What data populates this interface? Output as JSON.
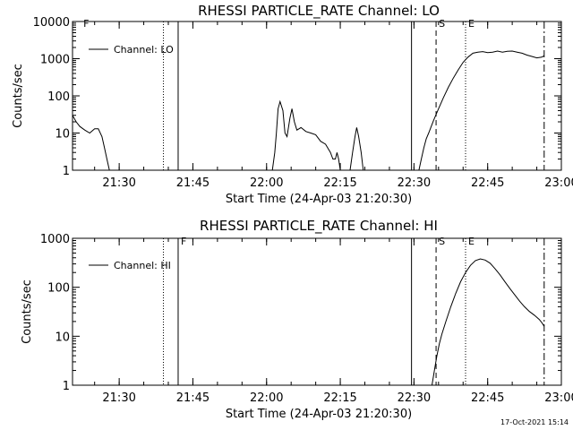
{
  "footer": {
    "timestamp": "17-Oct-2021 15:14"
  },
  "chart_data": [
    {
      "type": "line",
      "title": "RHESSI PARTICLE_RATE Channel: LO",
      "xlabel": "Start Time (24-Apr-03 21:20:30)",
      "ylabel": "Counts/sec",
      "yscale": "log",
      "xlim": [
        "21:20:30",
        "23:00:00"
      ],
      "ylim": [
        1,
        10000
      ],
      "xticks": [
        "21:30",
        "21:45",
        "22:00",
        "22:15",
        "22:30",
        "22:45",
        "23:00"
      ],
      "yticks": [
        "1",
        "10",
        "100",
        "1000",
        "10000"
      ],
      "legend": {
        "placement": "top-left",
        "entries": [
          "Channel: LO"
        ]
      },
      "markers": [
        {
          "label": "F",
          "time": "21:22:10",
          "style": "text"
        },
        {
          "label": "",
          "time": "21:39:00",
          "style": "dotted"
        },
        {
          "label": "",
          "time": "21:42:00",
          "style": "solid"
        },
        {
          "label": "",
          "time": "22:29:30",
          "style": "solid"
        },
        {
          "label": "S",
          "time": "22:34:30",
          "style": "dashed"
        },
        {
          "label": "E",
          "time": "22:40:30",
          "style": "dotted"
        },
        {
          "label": "",
          "time": "22:56:30",
          "style": "dashdot"
        }
      ],
      "series": [
        {
          "name": "Channel: LO",
          "segments": [
            [
              [
                "21:20:30",
                30
              ],
              [
                "21:21:15",
                20
              ],
              [
                "21:22:00",
                15
              ],
              [
                "21:23:00",
                12
              ],
              [
                "21:24:00",
                10
              ],
              [
                "21:25:00",
                13
              ],
              [
                "21:25:45",
                13
              ],
              [
                "21:26:30",
                8
              ],
              [
                "21:27:00",
                4
              ],
              [
                "21:27:30",
                2
              ],
              [
                "21:28:00",
                1
              ]
            ],
            [
              [
                "22:01:10",
                1
              ],
              [
                "22:01:40",
                3
              ],
              [
                "22:02:00",
                10
              ],
              [
                "22:02:20",
                45
              ],
              [
                "22:02:45",
                70
              ],
              [
                "22:03:20",
                40
              ],
              [
                "22:03:45",
                10
              ],
              [
                "22:04:10",
                8
              ],
              [
                "22:04:45",
                25
              ],
              [
                "22:05:10",
                45
              ],
              [
                "22:05:40",
                20
              ],
              [
                "22:06:10",
                12
              ],
              [
                "22:07:00",
                14
              ],
              [
                "22:08:00",
                11
              ],
              [
                "22:09:00",
                10
              ],
              [
                "22:10:00",
                9
              ],
              [
                "22:11:00",
                6
              ],
              [
                "22:12:00",
                5
              ],
              [
                "22:13:00",
                3
              ],
              [
                "22:13:30",
                2
              ],
              [
                "22:14:00",
                2
              ],
              [
                "22:14:20",
                3
              ],
              [
                "22:14:40",
                2
              ],
              [
                "22:15:00",
                1
              ]
            ],
            [
              [
                "22:17:00",
                1
              ],
              [
                "22:17:30",
                3
              ],
              [
                "22:18:00",
                8
              ],
              [
                "22:18:20",
                14
              ],
              [
                "22:18:45",
                8
              ],
              [
                "22:19:15",
                3
              ],
              [
                "22:19:40",
                1
              ]
            ],
            [
              [
                "22:31:00",
                1
              ],
              [
                "22:31:30",
                2
              ],
              [
                "22:32:00",
                4
              ],
              [
                "22:32:30",
                7
              ],
              [
                "22:33:00",
                10
              ],
              [
                "22:34:00",
                22
              ],
              [
                "22:35:00",
                45
              ],
              [
                "22:36:00",
                90
              ],
              [
                "22:37:00",
                170
              ],
              [
                "22:38:00",
                300
              ],
              [
                "22:39:00",
                500
              ],
              [
                "22:40:00",
                800
              ],
              [
                "22:41:00",
                1100
              ],
              [
                "22:42:00",
                1400
              ],
              [
                "22:43:00",
                1500
              ],
              [
                "22:44:00",
                1550
              ],
              [
                "22:45:00",
                1450
              ],
              [
                "22:46:00",
                1500
              ],
              [
                "22:47:00",
                1600
              ],
              [
                "22:48:00",
                1500
              ],
              [
                "22:49:00",
                1580
              ],
              [
                "22:50:00",
                1600
              ],
              [
                "22:51:00",
                1500
              ],
              [
                "22:52:00",
                1400
              ],
              [
                "22:53:00",
                1250
              ],
              [
                "22:54:00",
                1150
              ],
              [
                "22:55:00",
                1050
              ],
              [
                "22:56:00",
                1100
              ],
              [
                "22:56:30",
                1200
              ]
            ]
          ]
        }
      ]
    },
    {
      "type": "line",
      "title": "RHESSI PARTICLE_RATE Channel: HI",
      "xlabel": "Start Time (24-Apr-03 21:20:30)",
      "ylabel": "Counts/sec",
      "yscale": "log",
      "xlim": [
        "21:20:30",
        "23:00:00"
      ],
      "ylim": [
        1,
        1000
      ],
      "xticks": [
        "21:30",
        "21:45",
        "22:00",
        "22:15",
        "22:30",
        "22:45",
        "23:00"
      ],
      "yticks": [
        "1",
        "10",
        "100",
        "1000"
      ],
      "legend": {
        "placement": "top-left",
        "entries": [
          "Channel: HI"
        ]
      },
      "markers": [
        {
          "label": "",
          "time": "21:39:00",
          "style": "dotted"
        },
        {
          "label": "F",
          "time": "21:42:00",
          "style": "solid"
        },
        {
          "label": "",
          "time": "22:29:30",
          "style": "solid"
        },
        {
          "label": "S",
          "time": "22:34:30",
          "style": "dashed"
        },
        {
          "label": "E",
          "time": "22:40:30",
          "style": "dotted"
        },
        {
          "label": "",
          "time": "22:56:30",
          "style": "dashdot"
        }
      ],
      "series": [
        {
          "name": "Channel: HI",
          "segments": [
            [
              [
                "22:33:40",
                1
              ],
              [
                "22:34:10",
                2
              ],
              [
                "22:34:40",
                4
              ],
              [
                "22:35:10",
                7
              ],
              [
                "22:35:40",
                11
              ],
              [
                "22:36:30",
                20
              ],
              [
                "22:37:30",
                40
              ],
              [
                "22:38:30",
                75
              ],
              [
                "22:39:30",
                130
              ],
              [
                "22:40:30",
                200
              ],
              [
                "22:41:30",
                280
              ],
              [
                "22:42:30",
                350
              ],
              [
                "22:43:30",
                380
              ],
              [
                "22:44:30",
                360
              ],
              [
                "22:45:30",
                310
              ],
              [
                "22:46:30",
                240
              ],
              [
                "22:47:30",
                180
              ],
              [
                "22:48:30",
                130
              ],
              [
                "22:49:30",
                95
              ],
              [
                "22:50:30",
                70
              ],
              [
                "22:51:30",
                52
              ],
              [
                "22:52:30",
                40
              ],
              [
                "22:53:30",
                32
              ],
              [
                "22:54:30",
                27
              ],
              [
                "22:55:30",
                22
              ],
              [
                "22:56:00",
                19
              ],
              [
                "22:56:30",
                16
              ]
            ]
          ]
        }
      ]
    }
  ]
}
